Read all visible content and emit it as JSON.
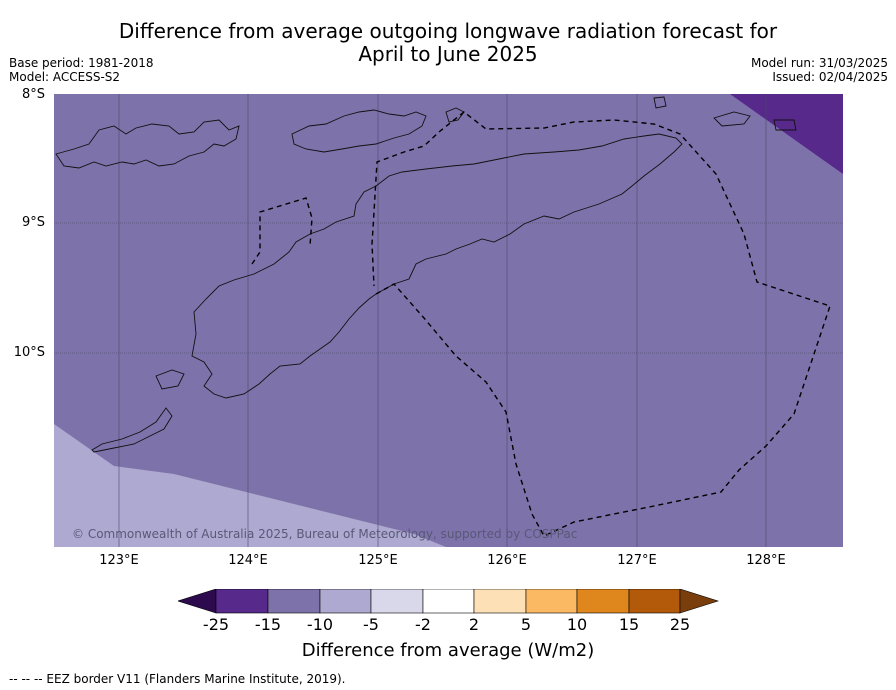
{
  "title_line1": "Difference from average outgoing longwave radiation forecast for",
  "title_line2": "April to June 2025",
  "base_period": "Base period: 1981-2018",
  "model": "Model: ACCESS-S2",
  "model_run": "Model run: 31/03/2025",
  "issued": "Issued: 02/04/2025",
  "latitude_labels": [
    "8°S",
    "9°S",
    "10°S"
  ],
  "longitude_labels": [
    "123°E",
    "124°E",
    "125°E",
    "126°E",
    "127°E",
    "128°E"
  ],
  "copyright": "© Commonwealth of Australia 2025, Bureau of Meteorology, supported by COSPPac",
  "colorbar": {
    "ticks": [
      "-25",
      "-15",
      "-10",
      "-5",
      "-2",
      "2",
      "5",
      "10",
      "15",
      "25"
    ],
    "colors": [
      "#2d0a4e",
      "#56298a",
      "#7e72aa",
      "#aea9d0",
      "#d9d8ea",
      "#ffffff",
      "#fde0b6",
      "#fbb963",
      "#df861c",
      "#b35a0a",
      "#7a3e0c"
    ],
    "label": "Difference from average (W/m2)"
  },
  "map_fill": {
    "dominant": "#7e72aa",
    "south_west_band": "#aea9d0",
    "north_east_corner": "#56298a"
  },
  "footnote": "--  --  -- EEZ border V11 (Flanders Marine Institute, 2019)."
}
